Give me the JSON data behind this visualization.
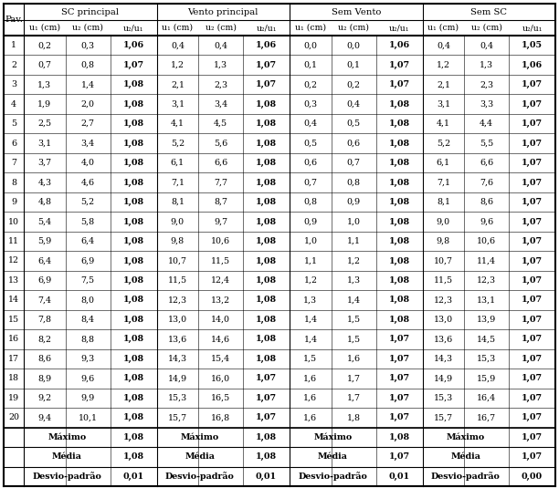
{
  "col_groups": [
    "SC principal",
    "Vento principal",
    "Sem Vento",
    "Sem SC"
  ],
  "sub_headers": [
    "u₁ (cm)",
    "u₂ (cm)",
    "u₂/u₁"
  ],
  "pav_label": "Pav.",
  "rows": [
    [
      1,
      "0,2",
      "0,3",
      "1,06",
      "0,4",
      "0,4",
      "1,06",
      "0,0",
      "0,0",
      "1,06",
      "0,4",
      "0,4",
      "1,05"
    ],
    [
      2,
      "0,7",
      "0,8",
      "1,07",
      "1,2",
      "1,3",
      "1,07",
      "0,1",
      "0,1",
      "1,07",
      "1,2",
      "1,3",
      "1,06"
    ],
    [
      3,
      "1,3",
      "1,4",
      "1,08",
      "2,1",
      "2,3",
      "1,07",
      "0,2",
      "0,2",
      "1,07",
      "2,1",
      "2,3",
      "1,07"
    ],
    [
      4,
      "1,9",
      "2,0",
      "1,08",
      "3,1",
      "3,4",
      "1,08",
      "0,3",
      "0,4",
      "1,08",
      "3,1",
      "3,3",
      "1,07"
    ],
    [
      5,
      "2,5",
      "2,7",
      "1,08",
      "4,1",
      "4,5",
      "1,08",
      "0,4",
      "0,5",
      "1,08",
      "4,1",
      "4,4",
      "1,07"
    ],
    [
      6,
      "3,1",
      "3,4",
      "1,08",
      "5,2",
      "5,6",
      "1,08",
      "0,5",
      "0,6",
      "1,08",
      "5,2",
      "5,5",
      "1,07"
    ],
    [
      7,
      "3,7",
      "4,0",
      "1,08",
      "6,1",
      "6,6",
      "1,08",
      "0,6",
      "0,7",
      "1,08",
      "6,1",
      "6,6",
      "1,07"
    ],
    [
      8,
      "4,3",
      "4,6",
      "1,08",
      "7,1",
      "7,7",
      "1,08",
      "0,7",
      "0,8",
      "1,08",
      "7,1",
      "7,6",
      "1,07"
    ],
    [
      9,
      "4,8",
      "5,2",
      "1,08",
      "8,1",
      "8,7",
      "1,08",
      "0,8",
      "0,9",
      "1,08",
      "8,1",
      "8,6",
      "1,07"
    ],
    [
      10,
      "5,4",
      "5,8",
      "1,08",
      "9,0",
      "9,7",
      "1,08",
      "0,9",
      "1,0",
      "1,08",
      "9,0",
      "9,6",
      "1,07"
    ],
    [
      11,
      "5,9",
      "6,4",
      "1,08",
      "9,8",
      "10,6",
      "1,08",
      "1,0",
      "1,1",
      "1,08",
      "9,8",
      "10,6",
      "1,07"
    ],
    [
      12,
      "6,4",
      "6,9",
      "1,08",
      "10,7",
      "11,5",
      "1,08",
      "1,1",
      "1,2",
      "1,08",
      "10,7",
      "11,4",
      "1,07"
    ],
    [
      13,
      "6,9",
      "7,5",
      "1,08",
      "11,5",
      "12,4",
      "1,08",
      "1,2",
      "1,3",
      "1,08",
      "11,5",
      "12,3",
      "1,07"
    ],
    [
      14,
      "7,4",
      "8,0",
      "1,08",
      "12,3",
      "13,2",
      "1,08",
      "1,3",
      "1,4",
      "1,08",
      "12,3",
      "13,1",
      "1,07"
    ],
    [
      15,
      "7,8",
      "8,4",
      "1,08",
      "13,0",
      "14,0",
      "1,08",
      "1,4",
      "1,5",
      "1,08",
      "13,0",
      "13,9",
      "1,07"
    ],
    [
      16,
      "8,2",
      "8,8",
      "1,08",
      "13,6",
      "14,6",
      "1,08",
      "1,4",
      "1,5",
      "1,07",
      "13,6",
      "14,5",
      "1,07"
    ],
    [
      17,
      "8,6",
      "9,3",
      "1,08",
      "14,3",
      "15,4",
      "1,08",
      "1,5",
      "1,6",
      "1,07",
      "14,3",
      "15,3",
      "1,07"
    ],
    [
      18,
      "8,9",
      "9,6",
      "1,08",
      "14,9",
      "16,0",
      "1,07",
      "1,6",
      "1,7",
      "1,07",
      "14,9",
      "15,9",
      "1,07"
    ],
    [
      19,
      "9,2",
      "9,9",
      "1,08",
      "15,3",
      "16,5",
      "1,07",
      "1,6",
      "1,7",
      "1,07",
      "15,3",
      "16,4",
      "1,07"
    ],
    [
      20,
      "9,4",
      "10,1",
      "1,08",
      "15,7",
      "16,8",
      "1,07",
      "1,6",
      "1,8",
      "1,07",
      "15,7",
      "16,7",
      "1,07"
    ]
  ],
  "summary": [
    [
      "Máximo",
      "1,08",
      "Máximo",
      "1,08",
      "Máximo",
      "1,08",
      "Máximo",
      "1,07"
    ],
    [
      "Média",
      "1,08",
      "Média",
      "1,08",
      "Média",
      "1,07",
      "Média",
      "1,07"
    ],
    [
      "Desvio-padrão",
      "0,01",
      "Desvio-padrão",
      "0,01",
      "Desvio-padrão",
      "0,01",
      "Desvio-padrão",
      "0,00"
    ]
  ],
  "bg_color": "white",
  "text_color": "black",
  "cell_fontsize": 6.8,
  "header_fontsize": 7.2
}
